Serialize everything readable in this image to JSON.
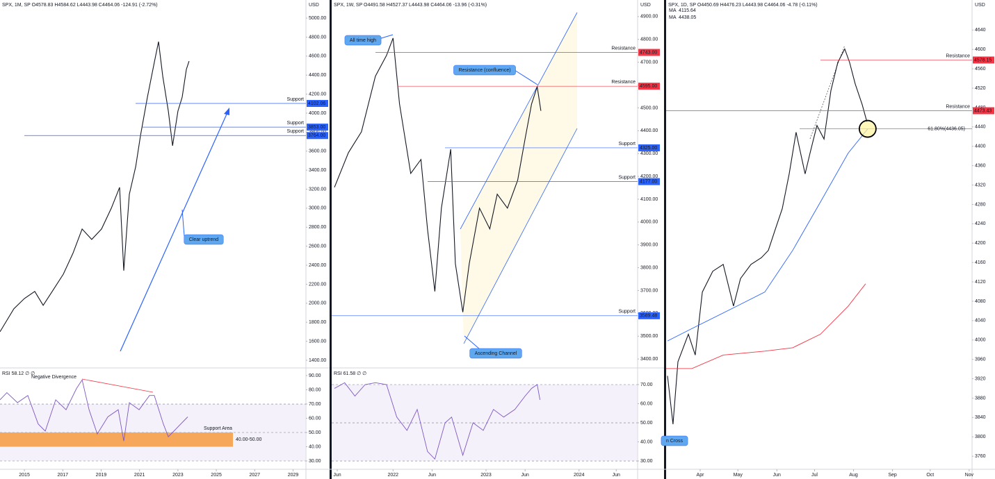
{
  "chart_data": [
    {
      "type": "line",
      "title": "SPX, 1M, SP  O4578.83  H4584.62  L4443.98  C4464.06  -124.91 (-2.72%)",
      "currency": "USD",
      "x": [
        2013.73,
        2014.45,
        2015.0,
        2015.54,
        2015.98,
        2016.45,
        2017.03,
        2017.53,
        2018.01,
        2018.51,
        2019.02,
        2019.53,
        2019.96,
        2020.18,
        2020.47,
        2020.8,
        2021.05,
        2021.41,
        2021.77,
        2021.99,
        2022.21,
        2022.5,
        2022.72,
        2023.0,
        2023.22,
        2023.44,
        2023.58
      ],
      "series": [
        {
          "color": "#131722",
          "values": [
            1700,
            1941,
            2050,
            2124,
            1978,
            2124,
            2306,
            2525,
            2781,
            2671,
            2781,
            3000,
            3219,
            2343,
            3146,
            3438,
            3766,
            4168,
            4533,
            4752,
            4387,
            4022,
            3657,
            4022,
            4168,
            4460,
            4547
          ]
        }
      ],
      "xlim": [
        2013.73,
        2029.67
      ],
      "xticks": [
        2015,
        2017,
        2019,
        2021,
        2023,
        2025,
        2027,
        2029
      ],
      "ylim": [
        1334,
        5088
      ],
      "yticks": [
        {
          "value": 5000,
          "label": "5000.00"
        },
        {
          "value": 4800,
          "label": "4800.00"
        },
        {
          "value": 4600,
          "label": "4600.00"
        },
        {
          "value": 4400,
          "label": "4400.00"
        },
        {
          "value": 4200,
          "label": "4200.00"
        },
        {
          "value": 4000,
          "label": "4000.00"
        },
        {
          "value": 3800,
          "label": "3800.00"
        },
        {
          "value": 3600,
          "label": "3600.00"
        },
        {
          "value": 3400,
          "label": "3400.00"
        },
        {
          "value": 3200,
          "label": "3200.00"
        },
        {
          "value": 3000,
          "label": "3000.00"
        },
        {
          "value": 2800,
          "label": "2800.00"
        },
        {
          "value": 2600,
          "label": "2600.00"
        },
        {
          "value": 2400,
          "label": "2400.00"
        },
        {
          "value": 2200,
          "label": "2200.00"
        },
        {
          "value": 2000,
          "label": "2000.00"
        },
        {
          "value": 1800,
          "label": "1800.00"
        },
        {
          "value": 1600,
          "label": "1600.00"
        },
        {
          "value": 1400,
          "label": "1400.00"
        }
      ],
      "levels": [
        {
          "text": "Support",
          "price": 4102.06,
          "color": "#2962ff",
          "box": true
        },
        {
          "text": "Support",
          "price": {
            "value": 3853,
            "label": "3853.00"
          },
          "color": "#2962ff",
          "box": true
        },
        {
          "text": "Support",
          "price": {
            "value": 3764,
            "label": "3764.00"
          },
          "color": "#2962ff",
          "box": true
        }
      ],
      "annotations": [
        {
          "text": "Clear uptrend"
        },
        {
          "text": "Negative Divergence"
        }
      ],
      "rsi": {
        "title": "RSI  58.12  ∅  ∅",
        "color": "#7e57c2",
        "x": [
          2013.73,
          2014.09,
          2014.64,
          2015.18,
          2015.72,
          2016.09,
          2016.63,
          2017.17,
          2017.72,
          2018.01,
          2018.37,
          2018.8,
          2019.35,
          2019.89,
          2020.18,
          2020.47,
          2020.98,
          2021.52,
          2021.77,
          2022.24,
          2022.5,
          2022.79,
          2023.15,
          2023.51
        ],
        "values": [
          73,
          78,
          71,
          76,
          56,
          51,
          73,
          66,
          81,
          87,
          66,
          49,
          61,
          66,
          44,
          71,
          66,
          76,
          76,
          56,
          47,
          51,
          56,
          61
        ],
        "ylim": [
          26.1,
          94.4
        ],
        "yticks": [
          {
            "value": 90,
            "label": "90.00"
          },
          {
            "value": 80,
            "label": "80.00"
          },
          {
            "value": 70,
            "label": "70.00"
          },
          {
            "value": 60,
            "label": "60.00"
          },
          {
            "value": 50,
            "label": "50.00"
          },
          {
            "value": 40,
            "label": "40.00"
          },
          {
            "value": 30,
            "label": "30.00"
          }
        ],
        "guides": [
          70,
          50,
          30
        ],
        "zone": {
          "text": "Support Area",
          "range_label": "40.00-50.00",
          "range": [
            40,
            50
          ],
          "color": "#f7a75a"
        }
      }
    },
    {
      "type": "line",
      "title": "SPX, 1W, SP  O4491.58  H4527.37  L4443.98  C4464.06  -13.96 (-0.31%)",
      "currency": "USD",
      "x": [
        2021.37,
        2021.52,
        2021.66,
        2021.81,
        2021.93,
        2022.0,
        2022.07,
        2022.19,
        2022.3,
        2022.37,
        2022.45,
        2022.52,
        2022.62,
        2022.67,
        2022.75,
        2022.82,
        2022.93,
        2023.04,
        2023.12,
        2023.23,
        2023.34,
        2023.42,
        2023.49,
        2023.55,
        2023.59
      ],
      "series": [
        {
          "color": "#131722",
          "values": [
            4152,
            4304,
            4395,
            4639,
            4730,
            4806,
            4517,
            4213,
            4274,
            3970,
            3696,
            4061,
            4319,
            3818,
            3605,
            3818,
            4061,
            3970,
            4122,
            4061,
            4183,
            4365,
            4517,
            4593,
            4487
          ]
        }
      ],
      "xlim": [
        2021.34,
        2024.63
      ],
      "xticks": [
        {
          "value": 2021.4,
          "label": "Jun"
        },
        2022,
        {
          "value": 2022.42,
          "label": "Jun"
        },
        2023,
        {
          "value": 2023.42,
          "label": "Jun"
        },
        2024,
        {
          "value": 2024.4,
          "label": "Jun"
        }
      ],
      "ylim": [
        3367,
        4930
      ],
      "yticks": [
        {
          "value": 4900,
          "label": "4900.00"
        },
        {
          "value": 4800,
          "label": "4800.00"
        },
        {
          "value": 4700,
          "label": "4700.00"
        },
        {
          "value": 4600,
          "label": "4600.00"
        },
        {
          "value": 4500,
          "label": "4500.00"
        },
        {
          "value": 4400,
          "label": "4400.00"
        },
        {
          "value": 4300,
          "label": "4300.00"
        },
        {
          "value": 4200,
          "label": "4200.00"
        },
        {
          "value": 4100,
          "label": "4100.00"
        },
        {
          "value": 4000,
          "label": "4000.00"
        },
        {
          "value": 3900,
          "label": "3900.00"
        },
        {
          "value": 3800,
          "label": "3800.00"
        },
        {
          "value": 3700,
          "label": "3700.00"
        },
        {
          "value": 3600,
          "label": "3600.00"
        },
        {
          "value": 3500,
          "label": "3500.00"
        },
        {
          "value": 3400,
          "label": "3400.00"
        }
      ],
      "levels": [
        {
          "text": "Resistance",
          "price": {
            "value": 4743,
            "label": "4743.00"
          },
          "color": "#f23645",
          "box": true
        },
        {
          "text": "Resistance",
          "price": {
            "value": 4595,
            "label": "4595.00"
          },
          "color": "#f23645",
          "box": true
        },
        {
          "text": "Support",
          "price": {
            "value": 4325,
            "label": "4325.00"
          },
          "color": "#2962ff",
          "box": true
        },
        {
          "text": "Support",
          "price": {
            "value": 4177,
            "label": "4177.00"
          },
          "color": "#2962ff",
          "box": true
        },
        {
          "text": "Support",
          "price": 3589.48,
          "color": "#2962ff",
          "box": true
        }
      ],
      "annotations": [
        {
          "text": "All time high"
        },
        {
          "text": "Resistance (confluence)"
        },
        {
          "text": "Ascending Channel"
        }
      ],
      "rsi": {
        "title": "RSI  61.58  ∅  ∅",
        "color": "#7e57c2",
        "x": [
          2021.37,
          2021.48,
          2021.59,
          2021.7,
          2021.81,
          2021.93,
          2022.04,
          2022.15,
          2022.26,
          2022.37,
          2022.45,
          2022.56,
          2022.63,
          2022.75,
          2022.86,
          2022.97,
          2023.08,
          2023.19,
          2023.31,
          2023.42,
          2023.49,
          2023.55,
          2023.58
        ],
        "values": [
          68,
          71,
          64,
          70,
          71,
          70,
          53,
          46,
          57,
          35,
          31,
          50,
          53,
          33,
          50,
          46,
          57,
          53,
          57,
          64,
          68,
          70,
          62
        ],
        "ylim": [
          27.1,
          78
        ],
        "yticks": [
          {
            "value": 70,
            "label": "70.00"
          },
          {
            "value": 60,
            "label": "60.00"
          },
          {
            "value": 50,
            "label": "50.00"
          },
          {
            "value": 40,
            "label": "40.00"
          },
          {
            "value": 30,
            "label": "30.00"
          }
        ],
        "guides": [
          70,
          50,
          30
        ]
      }
    },
    {
      "type": "line",
      "title": "SPX, 1D, SP  O4450.69  H4476.23  L4443.98  C4464.06  -4.78 (-0.11%)",
      "currency": "USD",
      "x": [
        65.0,
        69.4,
        73.3,
        81.6,
        87.1,
        92.7,
        101.0,
        109.3,
        117.5,
        123.1,
        131.4,
        139.7,
        145.2,
        150.7,
        156.3,
        161.8,
        167.3,
        174.5,
        178.4,
        183.9,
        189.5,
        195.0,
        200.5,
        206.0,
        209.9,
        214.3,
        219.9,
        223.7
      ],
      "series": [
        {
          "color": "#131722",
          "values": [
            3926,
            3826,
            3955,
            4012,
            3969,
            4099,
            4142,
            4156,
            4070,
            4127,
            4156,
            4170,
            4185,
            4228,
            4271,
            4343,
            4429,
            4343,
            4386,
            4443,
            4415,
            4515,
            4573,
            4601,
            4573,
            4529,
            4486,
            4450
          ]
        },
        {
          "name": "MA",
          "legend_value": 4115.64,
          "color": "#f23645",
          "x": [
            63.9,
            84.4,
            109.3,
            142.4,
            164.6,
            186.7,
            208.8,
            222.6
          ],
          "values": [
            3941,
            3941,
            3969,
            3977,
            3984,
            4012,
            4070,
            4116
          ]
        },
        {
          "name": "MA",
          "legend_value": 4438.05,
          "color": "#2962ff",
          "x": [
            65.0,
            87.1,
            120.3,
            142.4,
            164.6,
            186.7,
            208.8,
            224.3
          ],
          "values": [
            3998,
            4027,
            4070,
            4099,
            4185,
            4285,
            4386,
            4436
          ]
        }
      ],
      "xlim": [
        63.9,
        307.3
      ],
      "xticks": [
        {
          "value": 91,
          "label": "Apr"
        },
        {
          "value": 121,
          "label": "May"
        },
        {
          "value": 152,
          "label": "Jun"
        },
        {
          "value": 182,
          "label": "Jul"
        },
        {
          "value": 213,
          "label": "Aug"
        },
        {
          "value": 244,
          "label": "Sep"
        },
        {
          "value": 274,
          "label": "Oct"
        },
        {
          "value": 305,
          "label": "Nov"
        }
      ],
      "ylim": [
        3733,
        4682
      ],
      "yticks": [
        4640,
        4600,
        4560,
        4520,
        4480,
        4440,
        4400,
        4360,
        4320,
        4280,
        4240,
        4200,
        4160,
        4120,
        4080,
        4040,
        4000,
        3960,
        3920,
        3880,
        3840,
        3800,
        3760
      ],
      "levels": [
        {
          "text": "Resistance",
          "price": 4578.15,
          "color": "#f23645",
          "box": true
        },
        {
          "text": "Resistance",
          "price": 4473.43,
          "color": "#f23645",
          "box": true
        },
        {
          "text": "61.80%(4436.05)",
          "price": 4436.05,
          "color": "#089981",
          "box": false
        }
      ],
      "annotations": [
        {
          "text": "n Cross"
        }
      ]
    }
  ]
}
